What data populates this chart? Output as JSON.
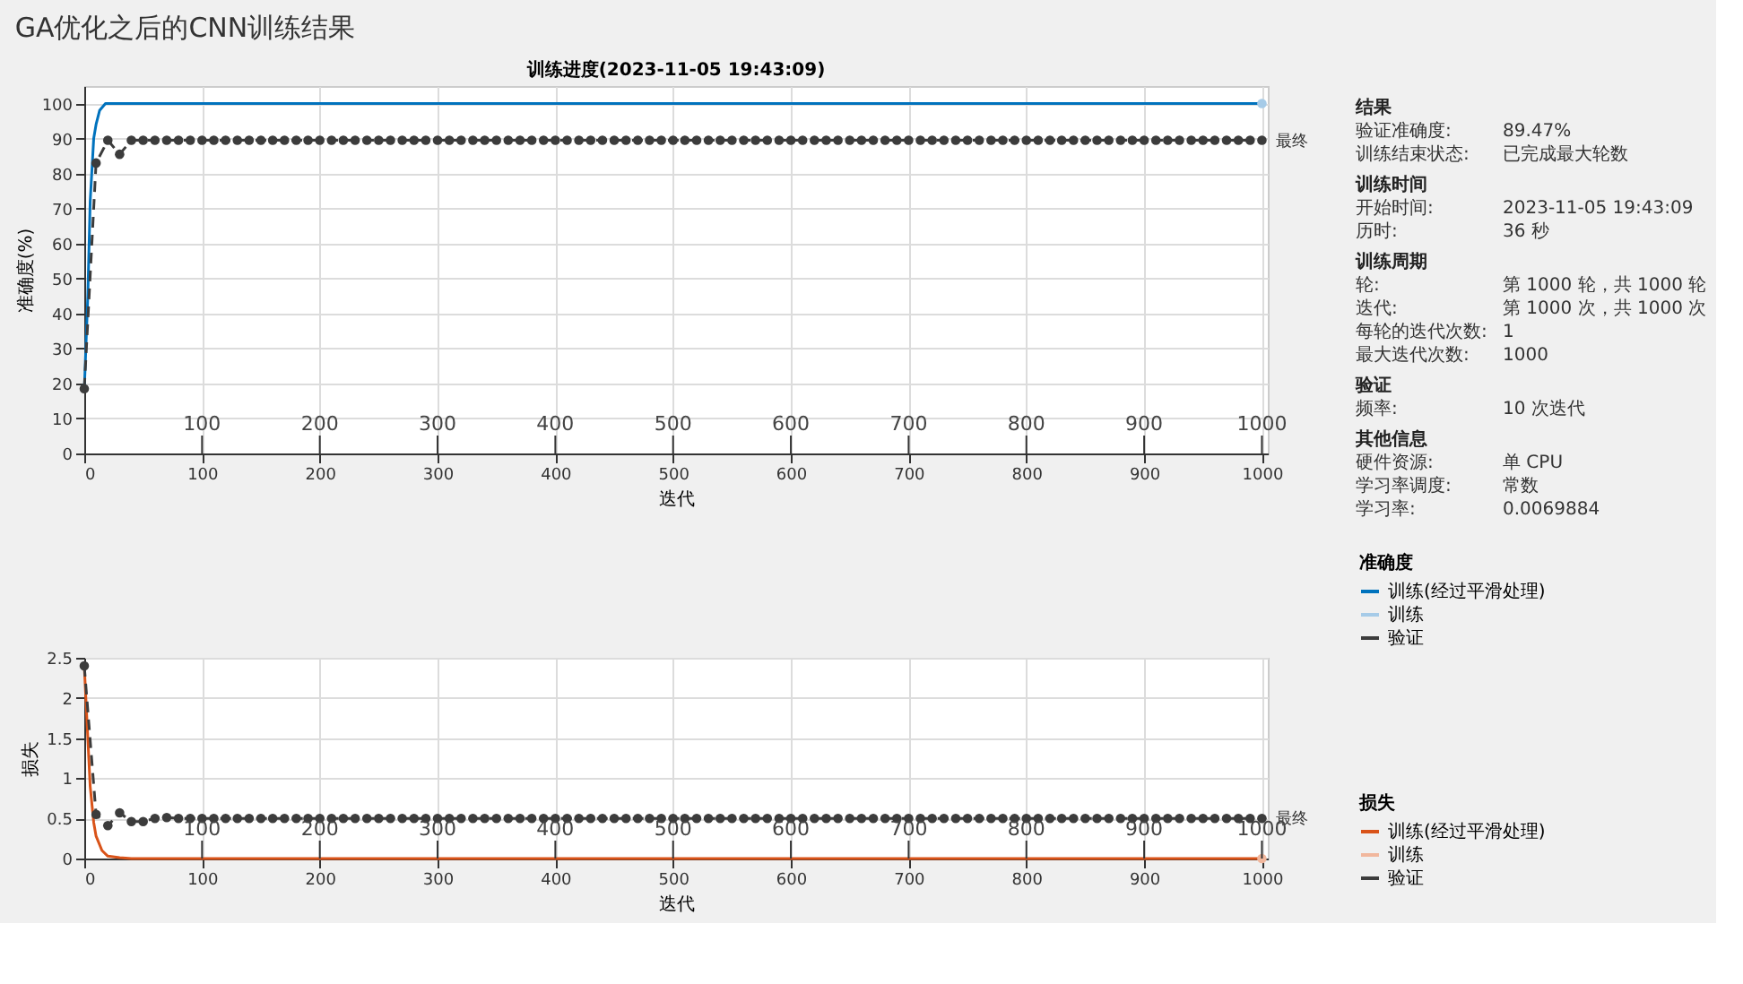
{
  "chart_data": [
    {
      "type": "line",
      "title": "GA优化之后的CNN训练结果",
      "subtitle": "训练进度(2023-11-05 19:43:09)",
      "xlabel": "迭代",
      "ylabel": "准确度(%)",
      "legend_title": "准确度",
      "xlim": [
        0,
        1005
      ],
      "xticks": [
        0,
        100,
        200,
        300,
        400,
        500,
        600,
        700,
        800,
        900,
        1000
      ],
      "x2lim": [
        0,
        1005
      ],
      "x2ticks": [
        100,
        200,
        300,
        400,
        500,
        600,
        700,
        800,
        900,
        1000
      ],
      "ylim": [
        0,
        105
      ],
      "yticks": [
        0,
        10,
        20,
        30,
        40,
        50,
        60,
        70,
        80,
        90,
        100
      ],
      "grid": true,
      "legend": "bottom right",
      "annotations": [
        {
          "text": "最终",
          "x": 1000,
          "y": 89.5
        }
      ],
      "series": [
        {
          "name": "训练(经过平滑处理)",
          "color": "#0072bd",
          "marker": "none",
          "line_style": "solid",
          "x": [
            0,
            3,
            5,
            8,
            10,
            13,
            18,
            1000
          ],
          "values": [
            18,
            45,
            72,
            90,
            94,
            98,
            100,
            100
          ]
        },
        {
          "name": "训练",
          "color": "#a6cbe8",
          "marker": "circle",
          "line_style": "solid",
          "x": [
            1000
          ],
          "values": [
            100
          ]
        },
        {
          "name": "验证",
          "color": "#3c3c3c",
          "marker": "circle",
          "line_style": "dashed",
          "x": [
            0,
            10,
            20,
            30,
            40,
            50,
            60,
            70,
            80,
            90,
            100,
            110,
            120,
            130,
            140,
            150,
            160,
            170,
            180,
            190,
            200,
            210,
            220,
            230,
            240,
            250,
            260,
            270,
            280,
            290,
            300,
            310,
            320,
            330,
            340,
            350,
            360,
            370,
            380,
            390,
            400,
            410,
            420,
            430,
            440,
            450,
            460,
            470,
            480,
            490,
            500,
            510,
            520,
            530,
            540,
            550,
            560,
            570,
            580,
            590,
            600,
            610,
            620,
            630,
            640,
            650,
            660,
            670,
            680,
            690,
            700,
            710,
            720,
            730,
            740,
            750,
            760,
            770,
            780,
            790,
            800,
            810,
            820,
            830,
            840,
            850,
            860,
            870,
            880,
            890,
            900,
            910,
            920,
            930,
            940,
            950,
            960,
            970,
            980,
            990,
            1000
          ],
          "values": [
            18.5,
            83,
            89.5,
            85.5,
            89.5,
            89.5,
            89.5,
            89.5,
            89.5,
            89.5,
            89.5,
            89.5,
            89.5,
            89.5,
            89.5,
            89.5,
            89.5,
            89.5,
            89.5,
            89.5,
            89.5,
            89.5,
            89.5,
            89.5,
            89.5,
            89.5,
            89.5,
            89.5,
            89.5,
            89.5,
            89.5,
            89.5,
            89.5,
            89.5,
            89.5,
            89.5,
            89.5,
            89.5,
            89.5,
            89.5,
            89.5,
            89.5,
            89.5,
            89.5,
            89.5,
            89.5,
            89.5,
            89.5,
            89.5,
            89.5,
            89.5,
            89.5,
            89.5,
            89.5,
            89.5,
            89.5,
            89.5,
            89.5,
            89.5,
            89.5,
            89.5,
            89.5,
            89.5,
            89.5,
            89.5,
            89.5,
            89.5,
            89.5,
            89.5,
            89.5,
            89.5,
            89.5,
            89.5,
            89.5,
            89.5,
            89.5,
            89.5,
            89.5,
            89.5,
            89.5,
            89.5,
            89.5,
            89.5,
            89.5,
            89.5,
            89.5,
            89.5,
            89.5,
            89.5,
            89.5,
            89.5,
            89.5,
            89.5,
            89.5,
            89.5,
            89.5,
            89.5,
            89.5,
            89.5,
            89.5,
            89.5
          ]
        }
      ]
    },
    {
      "type": "line",
      "xlabel": "迭代",
      "ylabel": "损失",
      "legend_title": "损失",
      "xlim": [
        0,
        1005
      ],
      "xticks": [
        0,
        100,
        200,
        300,
        400,
        500,
        600,
        700,
        800,
        900,
        1000
      ],
      "x2lim": [
        0,
        1005
      ],
      "x2ticks": [
        100,
        200,
        300,
        400,
        500,
        600,
        700,
        800,
        900,
        1000
      ],
      "ylim": [
        0,
        2.5
      ],
      "yticks": [
        0,
        0.5,
        1,
        1.5,
        2,
        2.5
      ],
      "grid": true,
      "legend": "right",
      "annotations": [
        {
          "text": "最终",
          "x": 1000,
          "y": 0.5
        }
      ],
      "series": [
        {
          "name": "训练(经过平滑处理)",
          "color": "#d95319",
          "marker": "none",
          "line_style": "solid",
          "x": [
            0,
            3,
            5,
            8,
            10,
            15,
            20,
            30,
            40,
            1000
          ],
          "values": [
            2.4,
            1.5,
            0.9,
            0.45,
            0.28,
            0.1,
            0.03,
            0.01,
            0,
            0
          ]
        },
        {
          "name": "训练",
          "color": "#f1b79d",
          "marker": "circle",
          "line_style": "solid",
          "x": [
            1000
          ],
          "values": [
            0
          ]
        },
        {
          "name": "验证",
          "color": "#3c3c3c",
          "marker": "circle",
          "line_style": "dashed",
          "x": [
            0,
            10,
            20,
            30,
            40,
            50,
            60,
            70,
            80,
            90,
            100,
            110,
            120,
            130,
            140,
            150,
            160,
            170,
            180,
            190,
            200,
            210,
            220,
            230,
            240,
            250,
            260,
            270,
            280,
            290,
            300,
            310,
            320,
            330,
            340,
            350,
            360,
            370,
            380,
            390,
            400,
            410,
            420,
            430,
            440,
            450,
            460,
            470,
            480,
            490,
            500,
            510,
            520,
            530,
            540,
            550,
            560,
            570,
            580,
            590,
            600,
            610,
            620,
            630,
            640,
            650,
            660,
            670,
            680,
            690,
            700,
            710,
            720,
            730,
            740,
            750,
            760,
            770,
            780,
            790,
            800,
            810,
            820,
            830,
            840,
            850,
            860,
            870,
            880,
            890,
            900,
            910,
            920,
            930,
            940,
            950,
            960,
            970,
            980,
            990,
            1000
          ],
          "values": [
            2.4,
            0.55,
            0.41,
            0.57,
            0.46,
            0.46,
            0.5,
            0.51,
            0.5,
            0.5,
            0.5,
            0.5,
            0.5,
            0.5,
            0.5,
            0.5,
            0.5,
            0.5,
            0.5,
            0.5,
            0.5,
            0.5,
            0.5,
            0.5,
            0.5,
            0.5,
            0.5,
            0.5,
            0.5,
            0.5,
            0.5,
            0.5,
            0.5,
            0.5,
            0.5,
            0.5,
            0.5,
            0.5,
            0.5,
            0.5,
            0.5,
            0.5,
            0.5,
            0.5,
            0.5,
            0.5,
            0.5,
            0.5,
            0.5,
            0.5,
            0.5,
            0.5,
            0.5,
            0.5,
            0.5,
            0.5,
            0.5,
            0.5,
            0.5,
            0.5,
            0.5,
            0.5,
            0.5,
            0.5,
            0.5,
            0.5,
            0.5,
            0.5,
            0.5,
            0.5,
            0.5,
            0.5,
            0.5,
            0.5,
            0.5,
            0.5,
            0.5,
            0.5,
            0.5,
            0.5,
            0.5,
            0.5,
            0.5,
            0.5,
            0.5,
            0.5,
            0.5,
            0.5,
            0.5,
            0.5,
            0.5,
            0.5,
            0.5,
            0.5,
            0.5,
            0.5,
            0.5,
            0.5,
            0.5,
            0.5,
            0.5
          ]
        }
      ]
    },
    {
      "type": "other",
      "annotations": [
        "结果",
        "验证准确度:\t89.47%",
        "训练结束状态:\t已完成最大轮数",
        "训练时间",
        "开始时间:\t2023-11-05 19:43:09",
        "历时:\t36 秒",
        "训练周期",
        "轮:\t第 1000 轮，共 1000 轮",
        "迭代:\t第 1000 次，共 1000 次",
        "每轮的迭代次数:\t1",
        "最大迭代次数:\t1000",
        "验证",
        "频率:\t10 次迭代",
        "其他信息",
        "硬件资源:\t单 CPU",
        "学习率调度:\t常数",
        "学习率:\t0.0069884"
      ]
    }
  ]
}
